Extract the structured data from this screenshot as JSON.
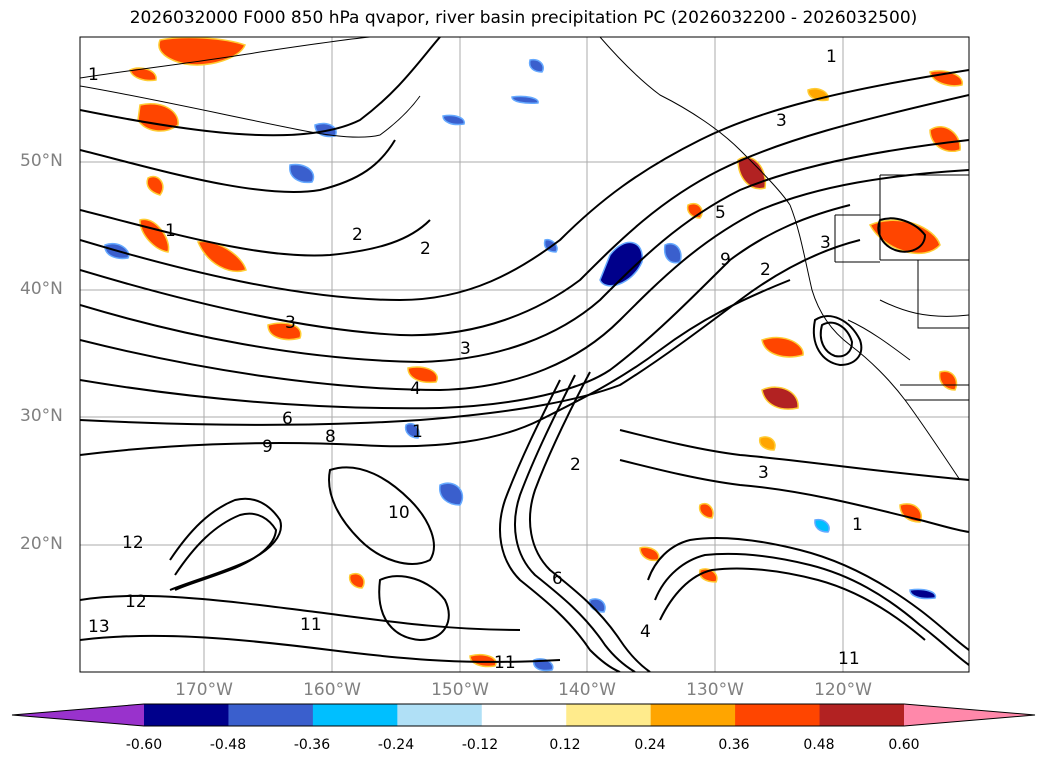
{
  "title": "2026032000 F000 850 hPa qvapor, river basin precipitation PC (2026032200 - 2026032500)",
  "lat_labels": [
    "50°N",
    "40°N",
    "30°N",
    "20°N"
  ],
  "lon_labels": [
    "170°W",
    "160°W",
    "150°W",
    "140°W",
    "130°W",
    "120°W"
  ],
  "colorbar": {
    "ticks": [
      "-0.60",
      "-0.48",
      "-0.36",
      "-0.24",
      "-0.12",
      "0.12",
      "0.24",
      "0.36",
      "0.48",
      "0.60"
    ],
    "colors": [
      "#9932cc",
      "#00008b",
      "#3a5fcd",
      "#00bfff",
      "#b0e0f6",
      "#ffffff",
      "#ffeb8c",
      "#ffa500",
      "#ff4500",
      "#b22222",
      "#ff88aa"
    ],
    "extend": "both"
  },
  "contour_labels": [
    "1",
    "2",
    "3",
    "4",
    "5",
    "6",
    "8",
    "9",
    "10",
    "11",
    "12",
    "13"
  ]
}
